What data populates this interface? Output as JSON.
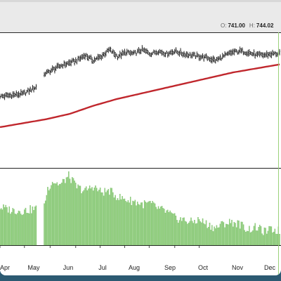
{
  "quote": {
    "o_label": "O:",
    "o_value": "741.00",
    "h_label": "H:",
    "h_value": "744.02"
  },
  "colors": {
    "price": "#111111",
    "ma": "#c0272d",
    "volume": "#8fd07a",
    "volume_edge": "#5aa94a",
    "cursor": "#9ad17a"
  },
  "chart_data": [
    {
      "type": "line",
      "panel": "price",
      "x_axis": "trading days, early April to late December (single year)",
      "y_axis": "price, unlabeled",
      "grid": false,
      "series": [
        {
          "style": "ohlc-bars",
          "x_days": [
            0,
            10,
            20,
            31,
            38,
            41,
            45,
            52,
            59,
            66,
            73,
            80,
            87,
            94,
            101,
            108,
            115,
            122,
            129,
            136,
            143,
            150,
            157,
            164,
            171,
            178,
            185,
            192,
            199,
            206,
            213,
            220,
            227,
            234,
            240
          ],
          "values": [
            0.53,
            0.54,
            0.55,
            0.6,
            0.7,
            0.71,
            0.73,
            0.76,
            0.78,
            0.8,
            0.84,
            0.8,
            0.83,
            0.88,
            0.83,
            0.86,
            0.85,
            0.88,
            0.85,
            0.87,
            0.85,
            0.87,
            0.85,
            0.84,
            0.83,
            0.82,
            0.8,
            0.83,
            0.86,
            0.87,
            0.86,
            0.84,
            0.84,
            0.85,
            0.85
          ]
        },
        {
          "style": "moving-average",
          "x_days": [
            0,
            20,
            40,
            60,
            80,
            100,
            120,
            140,
            160,
            180,
            200,
            220,
            240
          ],
          "values": [
            0.3,
            0.33,
            0.36,
            0.4,
            0.46,
            0.51,
            0.55,
            0.59,
            0.63,
            0.67,
            0.71,
            0.74,
            0.77
          ]
        }
      ]
    },
    {
      "type": "bar",
      "panel": "volume",
      "x_axis": "trading days",
      "y_axis": "volume, unlabeled",
      "x_days": [
        0,
        10,
        20,
        31,
        38,
        41,
        45,
        52,
        59,
        66,
        73,
        80,
        87,
        94,
        101,
        108,
        115,
        122,
        129,
        136,
        143,
        150,
        157,
        164,
        171,
        178,
        185,
        192,
        199,
        206,
        213,
        220,
        227,
        234,
        240
      ],
      "values": [
        0.5,
        0.46,
        0.45,
        0.48,
        0.53,
        0.75,
        0.85,
        0.8,
        0.92,
        0.77,
        0.72,
        0.78,
        0.7,
        0.72,
        0.64,
        0.6,
        0.58,
        0.54,
        0.55,
        0.48,
        0.44,
        0.36,
        0.33,
        0.3,
        0.33,
        0.27,
        0.22,
        0.28,
        0.3,
        0.27,
        0.2,
        0.23,
        0.17,
        0.2,
        0.18
      ]
    }
  ],
  "x_ticks": [
    "Apr",
    "May",
    "Jun",
    "Jul",
    "Aug",
    "Sep",
    "Oct",
    "Nov",
    "Dec"
  ]
}
